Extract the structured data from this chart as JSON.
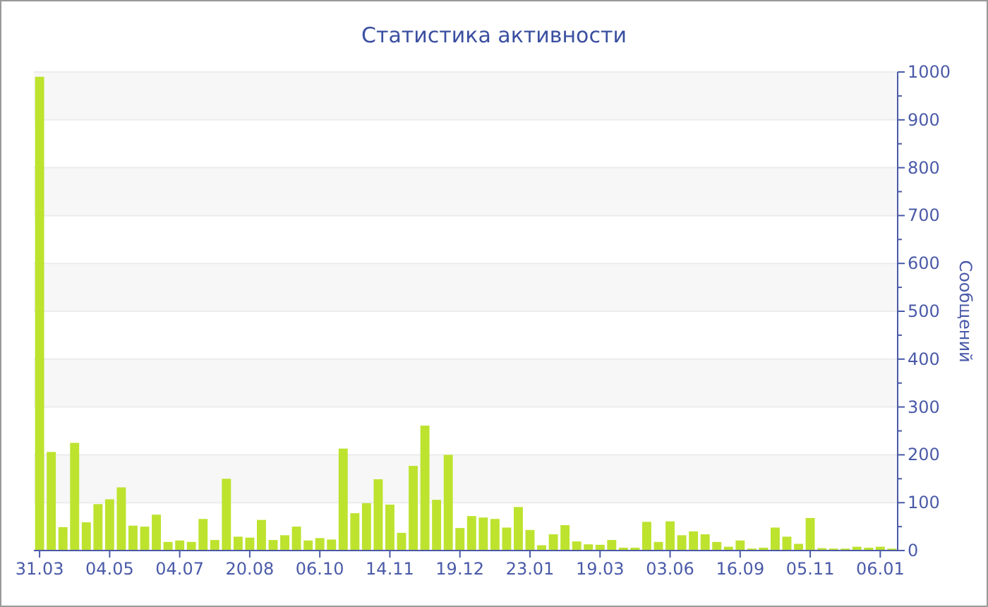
{
  "chart_data": {
    "type": "bar",
    "title": "Статистика активности",
    "ylabel": "Сообщений",
    "categories": [
      "31.03",
      null,
      null,
      null,
      null,
      null,
      "04.05",
      null,
      null,
      null,
      null,
      null,
      "04.07",
      null,
      null,
      null,
      null,
      null,
      "20.08",
      null,
      null,
      null,
      null,
      null,
      "06.10",
      null,
      null,
      null,
      null,
      null,
      "14.11",
      null,
      null,
      null,
      null,
      null,
      "19.12",
      null,
      null,
      null,
      null,
      null,
      "23.01",
      null,
      null,
      null,
      null,
      null,
      "19.03",
      null,
      null,
      null,
      null,
      null,
      "03.06",
      null,
      null,
      null,
      null,
      null,
      "16.09",
      null,
      null,
      null,
      null,
      null,
      "05.11",
      null,
      null,
      null,
      null,
      null,
      "06.01",
      null
    ],
    "values": [
      990,
      206,
      49,
      225,
      59,
      97,
      107,
      132,
      52,
      50,
      75,
      18,
      21,
      18,
      66,
      22,
      150,
      29,
      27,
      64,
      22,
      32,
      50,
      21,
      26,
      23,
      213,
      78,
      99,
      149,
      96,
      37,
      177,
      261,
      106,
      200,
      47,
      72,
      69,
      66,
      48,
      91,
      43,
      11,
      34,
      53,
      19,
      13,
      12,
      22,
      6,
      6,
      60,
      18,
      61,
      32,
      40,
      34,
      18,
      8,
      21,
      4,
      6,
      48,
      29,
      14,
      68,
      5,
      4,
      4,
      8,
      6,
      8,
      4
    ],
    "color": "#bde32f",
    "ylim": [
      0,
      1000
    ],
    "yticks": [
      0,
      {
        "value": 50,
        "label": null
      },
      100,
      {
        "value": 150,
        "label": null
      },
      200,
      {
        "value": 250,
        "label": null
      },
      300,
      {
        "value": 350,
        "label": null
      },
      400,
      {
        "value": 450,
        "label": null
      },
      500,
      {
        "value": 550,
        "label": null
      },
      600,
      {
        "value": 650,
        "label": null
      },
      700,
      {
        "value": 750,
        "label": null
      },
      800,
      {
        "value": 850,
        "label": null
      },
      900,
      {
        "value": 950,
        "label": null
      },
      1000
    ],
    "grid": "y"
  }
}
